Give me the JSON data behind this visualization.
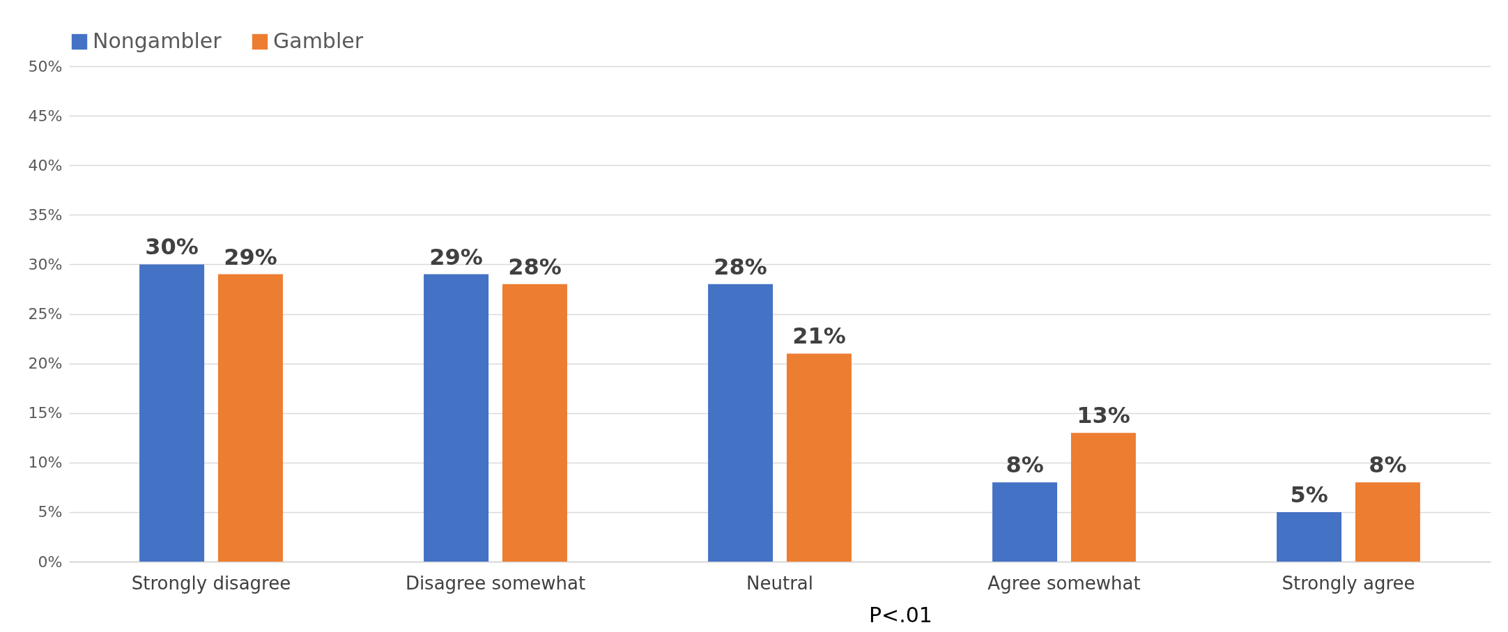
{
  "chart_data": {
    "type": "bar",
    "categories": [
      "Strongly disagree",
      "Disagree somewhat",
      "Neutral",
      "Agree somewhat",
      "Strongly agree"
    ],
    "series": [
      {
        "name": "Nongambler",
        "color": "#4472c4",
        "values": [
          30,
          29,
          28,
          8,
          5
        ],
        "value_labels": [
          "30%",
          "29%",
          "28%",
          "8%",
          "5%"
        ]
      },
      {
        "name": "Gambler",
        "color": "#ed7d31",
        "values": [
          29,
          28,
          21,
          13,
          8
        ],
        "value_labels": [
          "29%",
          "28%",
          "21%",
          "13%",
          "8%"
        ]
      }
    ],
    "ylim": [
      0,
      50
    ],
    "yticks": [
      {
        "value": 0,
        "label": "0%"
      },
      {
        "value": 5,
        "label": "5%"
      },
      {
        "value": 10,
        "label": "10%"
      },
      {
        "value": 15,
        "label": "15%"
      },
      {
        "value": 20,
        "label": "20%"
      },
      {
        "value": 25,
        "label": "25%"
      },
      {
        "value": 30,
        "label": "30%"
      },
      {
        "value": 35,
        "label": "35%"
      },
      {
        "value": 40,
        "label": "40%"
      },
      {
        "value": 45,
        "label": "45%"
      },
      {
        "value": 50,
        "label": "50%"
      }
    ],
    "grid": "y",
    "legend": "top",
    "annotations": [
      "P<.01"
    ]
  }
}
